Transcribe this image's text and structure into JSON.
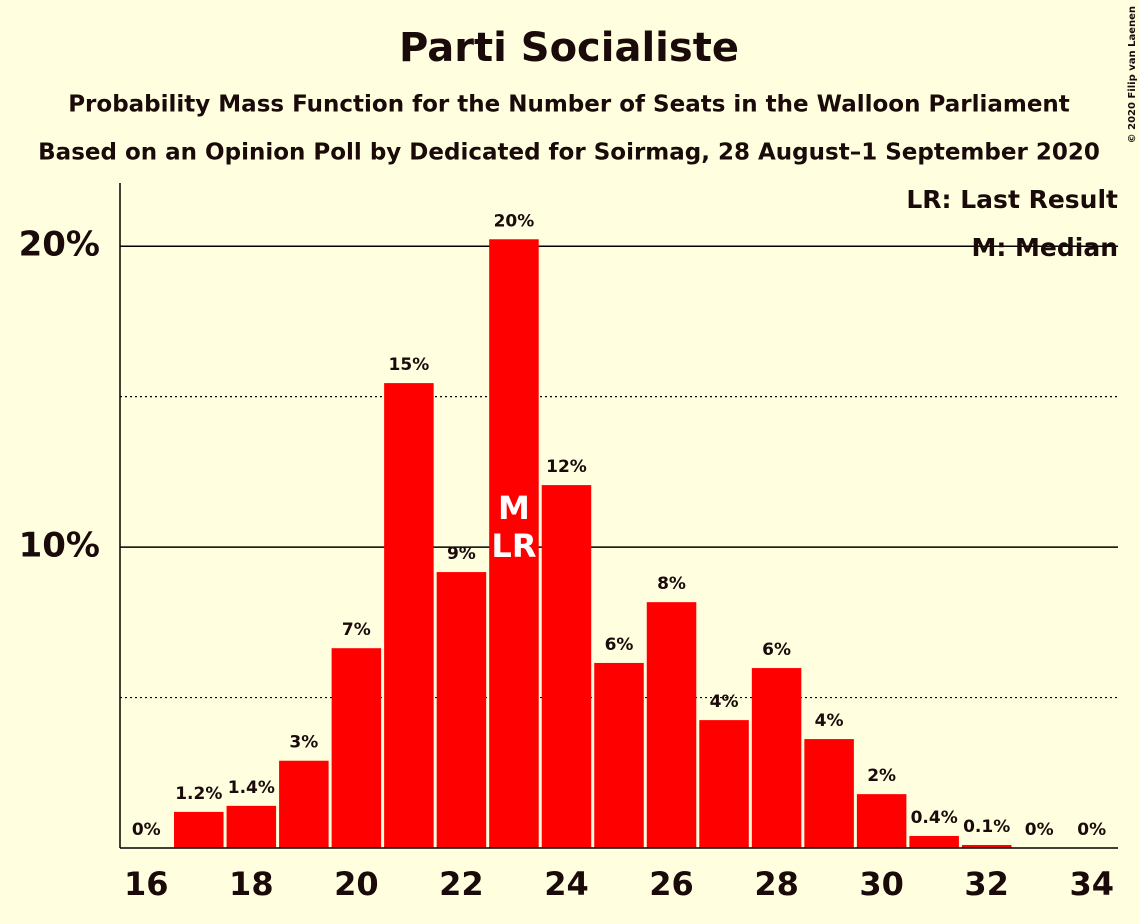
{
  "chart_data": {
    "type": "bar",
    "title": "Parti Socialiste",
    "subtitle": "Probability Mass Function for the Number of Seats in the Walloon Parliament",
    "subtitle2": "Based on an Opinion Poll by Dedicated for Soirmag, 28 August–1 September 2020",
    "copyright": "© 2020 Filip van Laenen",
    "x": [
      16,
      17,
      18,
      19,
      20,
      21,
      22,
      23,
      24,
      25,
      26,
      27,
      28,
      29,
      30,
      31,
      32,
      33,
      34
    ],
    "values": [
      0,
      1.2,
      1.4,
      2.9,
      6.64,
      15.45,
      9.17,
      20.23,
      12.06,
      6.15,
      8.17,
      4.25,
      5.98,
      3.62,
      1.79,
      0.4,
      0.1,
      0,
      0
    ],
    "value_labels": [
      "0%",
      "1.2%",
      "1.4%",
      "3%",
      "7%",
      "15%",
      "9%",
      "20%",
      "12%",
      "6%",
      "8%",
      "4%",
      "6%",
      "4%",
      "2%",
      "0.4%",
      "0.1%",
      "0%",
      "0%"
    ],
    "color": "#ff0000",
    "xlim": [
      15.5,
      34.5
    ],
    "xticks": [
      16,
      18,
      20,
      22,
      24,
      26,
      28,
      30,
      32,
      34
    ],
    "ylim": [
      0,
      22.1
    ],
    "yticks": [
      {
        "value": 10,
        "label": "10%"
      },
      {
        "value": 20,
        "label": "20%"
      }
    ],
    "minor_grid": [
      5,
      15
    ],
    "grid": true,
    "median": {
      "x": 23,
      "label": "M"
    },
    "last_result": {
      "x": 23,
      "label": "LR"
    },
    "legend": [
      "LR: Last Result",
      "M: Median"
    ]
  }
}
